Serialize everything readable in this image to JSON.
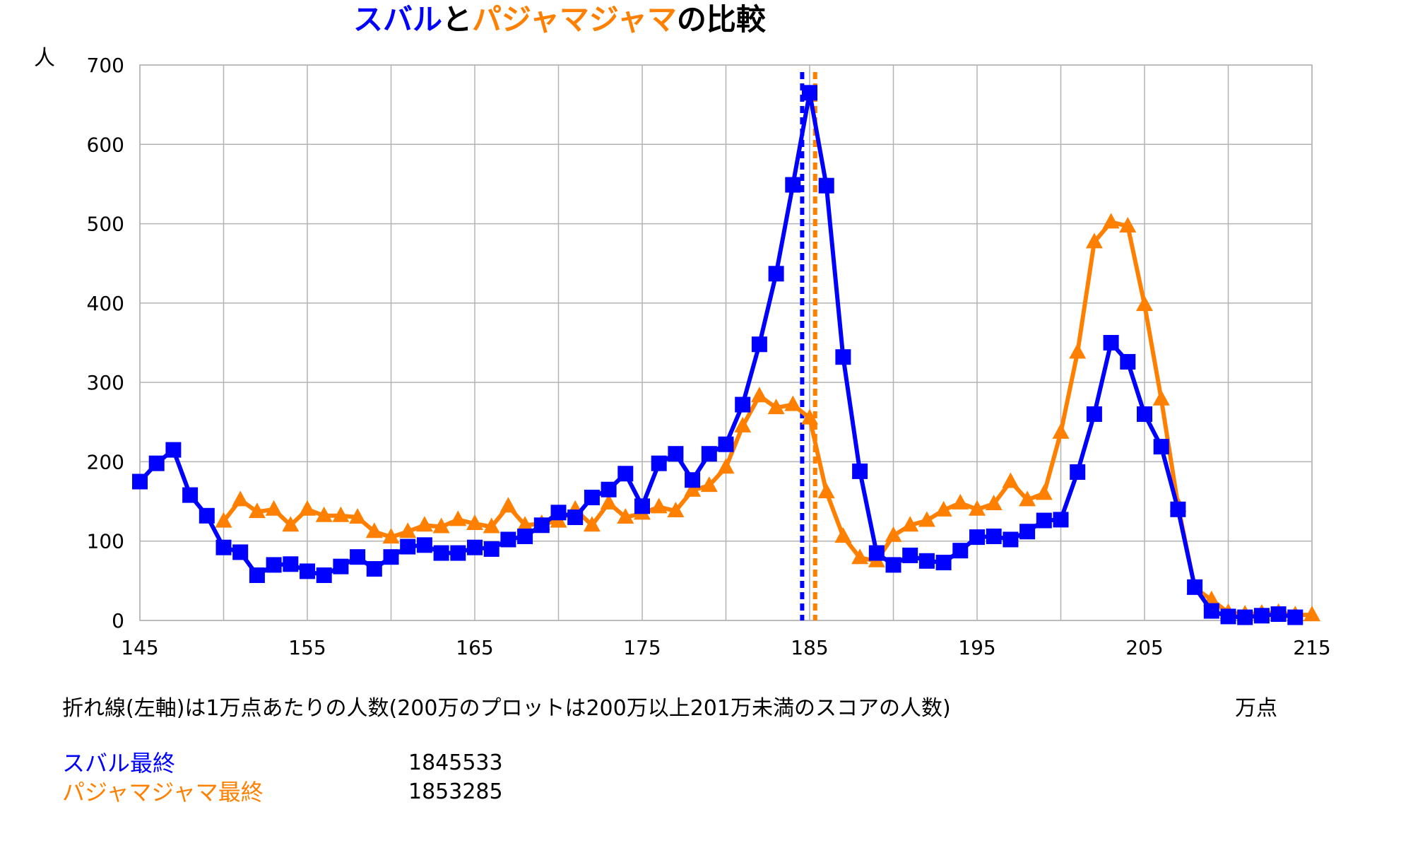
{
  "colors": {
    "subaru": "#0000ff",
    "pajama": "#ff8000",
    "title_rest": "#000000",
    "grid": "#b3b3b3"
  },
  "chart_data": {
    "type": "line",
    "title_parts": [
      {
        "text": "スバル",
        "color": "#0000ff"
      },
      {
        "text": "と",
        "color": "#000000"
      },
      {
        "text": "パジャマジャマ",
        "color": "#ff8000"
      },
      {
        "text": "の比較",
        "color": "#000000"
      }
    ],
    "ylabel": "人",
    "xlabel": "万点",
    "xlim": [
      145,
      215
    ],
    "ylim": [
      0,
      700
    ],
    "x_ticks": [
      145,
      155,
      165,
      175,
      185,
      195,
      205,
      215
    ],
    "y_ticks": [
      0,
      100,
      200,
      300,
      400,
      500,
      600,
      700
    ],
    "grid": true,
    "legend": "none",
    "series": [
      {
        "name": "スバル",
        "color": "#0000ff",
        "marker": "square",
        "x": [
          145,
          146,
          147,
          148,
          149,
          150,
          151,
          152,
          153,
          154,
          155,
          156,
          157,
          158,
          159,
          160,
          161,
          162,
          163,
          164,
          165,
          166,
          167,
          168,
          169,
          170,
          171,
          172,
          173,
          174,
          175,
          176,
          177,
          178,
          179,
          180,
          181,
          182,
          183,
          184,
          185,
          186,
          187,
          188,
          189,
          190,
          191,
          192,
          193,
          194,
          195,
          196,
          197,
          198,
          199,
          200,
          201,
          202,
          203,
          204,
          205,
          206,
          207,
          208,
          209,
          210,
          211,
          212,
          213,
          214
        ],
        "y": [
          175,
          198,
          215,
          158,
          132,
          92,
          86,
          57,
          70,
          71,
          62,
          57,
          68,
          80,
          65,
          80,
          93,
          95,
          85,
          85,
          92,
          90,
          102,
          106,
          120,
          136,
          130,
          155,
          165,
          185,
          144,
          198,
          210,
          177,
          210,
          222,
          272,
          348,
          437,
          549,
          665,
          548,
          332,
          188,
          85,
          70,
          82,
          75,
          73,
          88,
          105,
          106,
          102,
          112,
          126,
          127,
          187,
          260,
          350,
          326,
          260,
          219,
          140,
          42,
          12,
          5,
          4,
          6,
          8,
          4
        ]
      },
      {
        "name": "パジャマジャマ",
        "color": "#ff8000",
        "marker": "triangle",
        "x": [
          150,
          151,
          152,
          153,
          154,
          155,
          156,
          157,
          158,
          159,
          160,
          161,
          162,
          163,
          164,
          165,
          166,
          167,
          168,
          169,
          170,
          171,
          172,
          173,
          174,
          175,
          176,
          177,
          178,
          179,
          180,
          181,
          182,
          183,
          184,
          185,
          186,
          187,
          188,
          189,
          190,
          191,
          192,
          193,
          194,
          195,
          196,
          197,
          198,
          199,
          200,
          201,
          202,
          203,
          204,
          205,
          206,
          207,
          208,
          209,
          210,
          211,
          212,
          213,
          214,
          215
        ],
        "y": [
          125,
          152,
          137,
          140,
          120,
          140,
          132,
          132,
          130,
          112,
          105,
          112,
          120,
          118,
          127,
          122,
          118,
          144,
          120,
          122,
          125,
          140,
          120,
          148,
          130,
          135,
          143,
          138,
          164,
          170,
          193,
          245,
          283,
          268,
          272,
          255,
          162,
          106,
          79,
          75,
          107,
          120,
          126,
          139,
          148,
          140,
          147,
          175,
          152,
          160,
          237,
          338,
          477,
          502,
          497,
          398,
          279,
          145,
          41,
          26,
          10,
          8,
          9,
          10,
          7,
          7
        ]
      }
    ],
    "reference_lines": [
      {
        "x": 184.5533,
        "color": "#0000ff",
        "style": "dotted"
      },
      {
        "x": 185.3285,
        "color": "#ff8000",
        "style": "dotted"
      }
    ]
  },
  "note": "折れ線(左軸)は1万点あたりの人数(200万のプロットは200万以上201万未満のスコアの人数)",
  "legend": [
    {
      "label": "スバル最終",
      "value": "1845533",
      "color": "#0000ff"
    },
    {
      "label": "パジャマジャマ最終",
      "value": "1853285",
      "color": "#ff8000"
    }
  ]
}
